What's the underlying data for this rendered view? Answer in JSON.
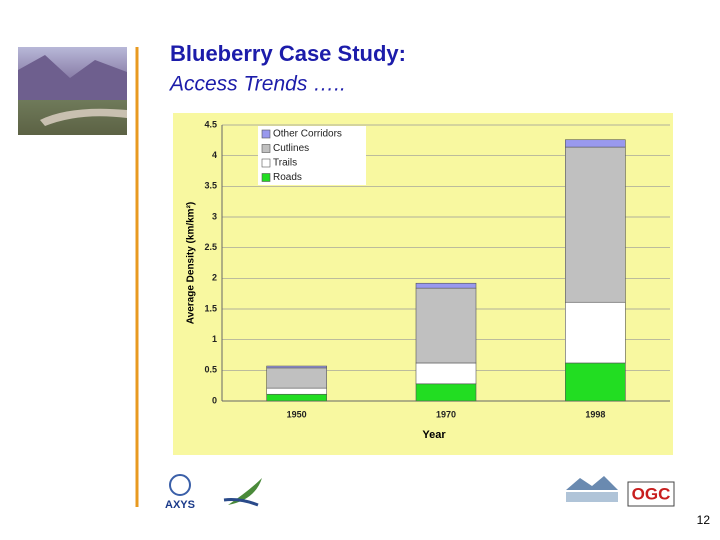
{
  "title": "Blueberry Case Study:",
  "subtitle": "Access Trends …..",
  "page_number": "12",
  "logos": [
    "AXYS",
    "OGC"
  ],
  "chart_data": {
    "type": "stacked_bar",
    "categories": [
      "1950",
      "1970",
      "1998"
    ],
    "series": [
      {
        "name": "Roads",
        "color": "#22dd22",
        "values": [
          0.11,
          0.28,
          0.62
        ]
      },
      {
        "name": "Trails",
        "color": "#ffffff",
        "values": [
          0.1,
          0.34,
          0.99
        ]
      },
      {
        "name": "Cutlines",
        "color": "#c0c0c0",
        "values": [
          0.33,
          1.22,
          2.53
        ]
      },
      {
        "name": "Other Corridors",
        "color": "#9999ee",
        "values": [
          0.03,
          0.08,
          0.12
        ]
      }
    ],
    "x_label": "Year",
    "y_label": "Average Density (km/km²)",
    "ylim": [
      0,
      4.5
    ],
    "yticks": [
      0,
      0.5,
      1,
      1.5,
      2,
      2.5,
      3,
      3.5,
      4,
      4.5
    ],
    "grid": true,
    "legend": "top-left"
  }
}
